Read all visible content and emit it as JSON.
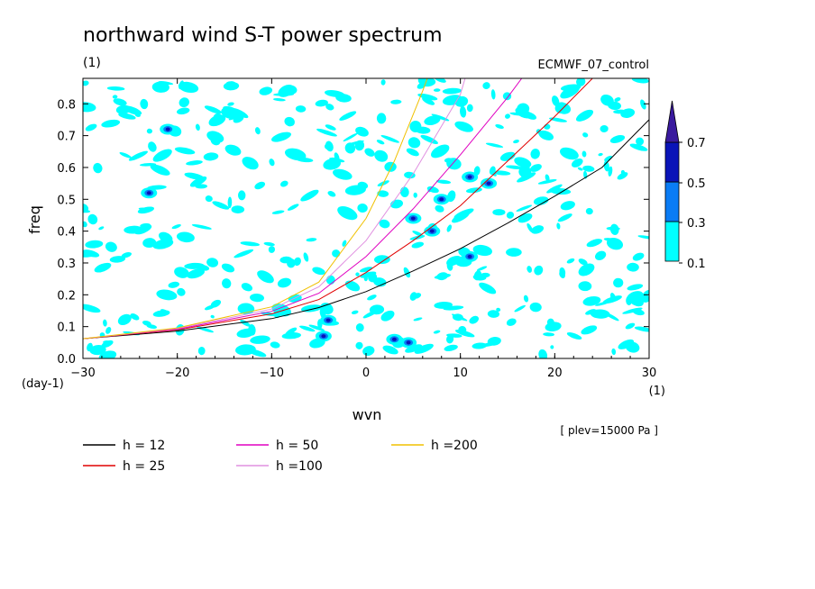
{
  "chart_data": {
    "type": "contour",
    "title": "northward wind S-T power spectrum",
    "title_unit": "(1)",
    "dataset": "ECMWF_07_control",
    "xlabel": "wvn",
    "xunit": "(1)",
    "ylabel": "freq",
    "yunit": "(day-1)",
    "level_note": "[ plev=15000 Pa ]",
    "xlim": [
      -30,
      30
    ],
    "ylim": [
      0,
      0.88
    ],
    "xticks": [
      "-30",
      "-20",
      "-10",
      "0",
      "10",
      "20",
      "30"
    ],
    "yticks": [
      "0.0",
      "0.1",
      "0.2",
      "0.3",
      "0.4",
      "0.5",
      "0.6",
      "0.7",
      "0.8"
    ],
    "colorbar": {
      "levels": [
        "0.1",
        "0.3",
        "0.5",
        "0.7"
      ],
      "colors": [
        "#00ffff",
        "#0a7cf5",
        "#0a14b8",
        "#3a1a9e"
      ]
    },
    "dispersion_curves": [
      {
        "name": "h = 12",
        "color": "#000000",
        "x": [
          -30,
          -20,
          -10,
          -5,
          0,
          5,
          10,
          15,
          20,
          25,
          30
        ],
        "y": [
          0.062,
          0.086,
          0.125,
          0.16,
          0.21,
          0.275,
          0.345,
          0.425,
          0.51,
          0.6,
          0.75
        ]
      },
      {
        "name": "h = 25",
        "color": "#e00000",
        "x": [
          -30,
          -20,
          -10,
          -5,
          0,
          5,
          10,
          15,
          20,
          24
        ],
        "y": [
          0.062,
          0.09,
          0.14,
          0.185,
          0.27,
          0.37,
          0.48,
          0.62,
          0.76,
          0.88
        ]
      },
      {
        "name": "h = 50",
        "color": "#e000c0",
        "x": [
          -30,
          -20,
          -10,
          -5,
          0,
          5,
          10,
          15,
          16.5
        ],
        "y": [
          0.062,
          0.092,
          0.148,
          0.205,
          0.32,
          0.47,
          0.64,
          0.82,
          0.88
        ]
      },
      {
        "name": "h =100",
        "color": "#e090e0",
        "x": [
          -30,
          -20,
          -10,
          -5,
          0,
          5,
          10,
          10.5
        ],
        "y": [
          0.062,
          0.094,
          0.155,
          0.225,
          0.37,
          0.58,
          0.83,
          0.88
        ]
      },
      {
        "name": "h =200",
        "color": "#f0c000",
        "x": [
          -30,
          -20,
          -10,
          -5,
          0,
          3,
          6,
          6.5
        ],
        "y": [
          0.062,
          0.096,
          0.162,
          0.24,
          0.44,
          0.62,
          0.84,
          0.88
        ]
      }
    ],
    "grid": false
  },
  "palette": {
    "background": "#ffffff",
    "axis": "#000000"
  }
}
